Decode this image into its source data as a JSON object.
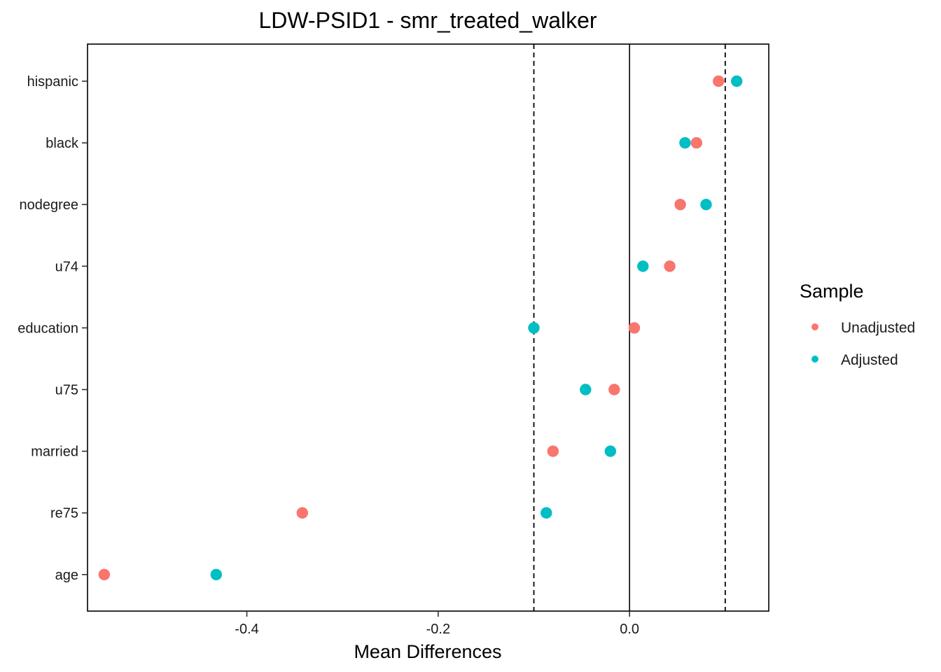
{
  "chart_data": {
    "type": "scatter",
    "title": "LDW-PSID1 - smr_treated_walker",
    "xlabel": "Mean Differences",
    "ylabel": "",
    "xlim": [
      -0.5665,
      0.1455
    ],
    "x_ticks": [
      -0.4,
      -0.2,
      0.0
    ],
    "x_tick_labels": [
      "-0.4",
      "-0.2",
      "0.0"
    ],
    "categories": [
      "hispanic",
      "black",
      "nodegree",
      "u74",
      "education",
      "u75",
      "married",
      "re75",
      "age"
    ],
    "reference_lines": [
      {
        "value": 0.0,
        "style": "solid"
      },
      {
        "value": -0.1,
        "style": "dashed"
      },
      {
        "value": 0.1,
        "style": "dashed"
      }
    ],
    "legend_title": "Sample",
    "legend_position": "right",
    "grid": false,
    "series": [
      {
        "name": "Unadjusted",
        "color": "#F8766D",
        "values": [
          0.093,
          0.07,
          0.053,
          0.042,
          0.005,
          -0.016,
          -0.08,
          -0.342,
          -0.549
        ]
      },
      {
        "name": "Adjusted",
        "color": "#00BFC4",
        "values": [
          0.112,
          0.058,
          0.08,
          0.014,
          -0.1,
          -0.046,
          -0.02,
          -0.087,
          -0.432
        ]
      }
    ]
  }
}
